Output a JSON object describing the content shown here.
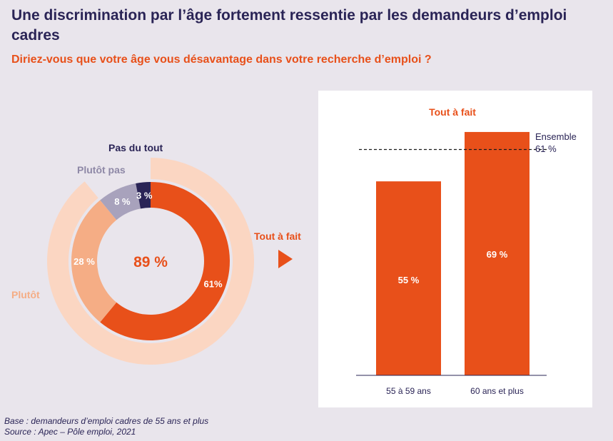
{
  "title": "Une discrimination par l’âge fortement ressentie par les demandeurs d’emploi cadres",
  "subtitle": "Diriez-vous que votre âge vous désavantage dans votre recherche d’emploi ?",
  "colors": {
    "tout_a_fait": "#e8501a",
    "plutot": "#f5ad85",
    "plutot_outer": "#fbd6c2",
    "plutot_pas": "#a8a2bc",
    "pas_du_tout": "#2a2456",
    "navy": "#2a2456"
  },
  "chart_data": [
    {
      "type": "pie",
      "title": "",
      "center_label": "89 %",
      "slices": [
        {
          "name": "Tout à fait",
          "value": 61,
          "label": "61%"
        },
        {
          "name": "Plutôt",
          "value": 28,
          "label": "28 %"
        },
        {
          "name": "Plutôt pas",
          "value": 8,
          "label": "8 %"
        },
        {
          "name": "Pas du tout",
          "value": 3,
          "label": "3 %"
        }
      ],
      "outer_ring": {
        "name": "Tout à fait + Plutôt",
        "value": 89
      }
    },
    {
      "type": "bar",
      "title": "Tout à fait",
      "categories": [
        "55 à 59 ans",
        "60 ans et plus"
      ],
      "values": [
        55,
        69
      ],
      "value_labels": [
        "55 %",
        "69 %"
      ],
      "ylim": [
        0,
        70
      ],
      "reference_line": {
        "value": 61,
        "label_line1": "Ensemble",
        "label_line2": "61 %"
      }
    }
  ],
  "footnote": {
    "base": "Base : demandeurs d’emploi cadres de 55 ans et plus",
    "source": "Source : Apec – Pôle emploi, 2021"
  }
}
